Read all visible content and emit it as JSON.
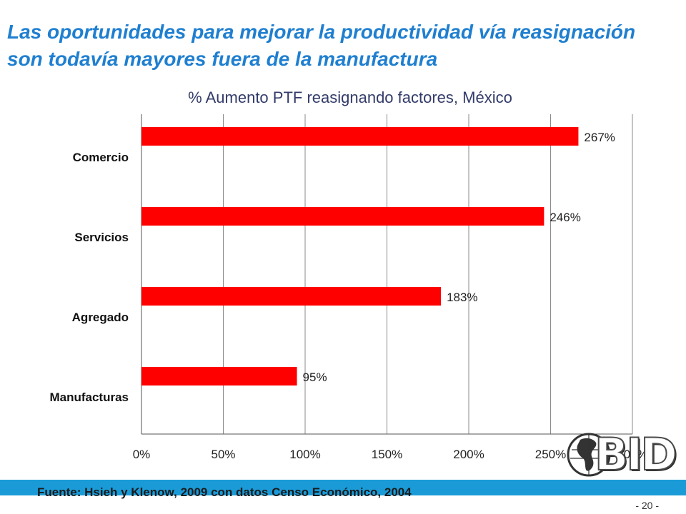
{
  "slide": {
    "title": "Las oportunidades para mejorar la productividad vía reasignación son todavía mayores fuera de la manufactura",
    "source": "Fuente: Hsieh y Klenow, 2009 con datos Censo Económico, 2004",
    "page_number": "- 20 -",
    "logo_text": "BID",
    "colors": {
      "title": "#1f7fd0",
      "bar": "#ff0000",
      "footer_bar": "#1a9bd7",
      "chart_title": "#333b6a"
    }
  },
  "chart_data": {
    "type": "bar",
    "orientation": "horizontal",
    "title": "% Aumento PTF reasignando factores, México",
    "categories": [
      "Comercio",
      "Servicios",
      "Agregado",
      "Manufacturas"
    ],
    "values": [
      267,
      246,
      183,
      95
    ],
    "data_labels": [
      "267%",
      "246%",
      "183%",
      "95%"
    ],
    "xlim": [
      0,
      300
    ],
    "xticks": [
      0,
      50,
      100,
      150,
      200,
      250,
      300
    ],
    "xtick_labels": [
      "0%",
      "50%",
      "100%",
      "150%",
      "200%",
      "250%",
      "300%"
    ],
    "grid": true,
    "legend": "none"
  }
}
